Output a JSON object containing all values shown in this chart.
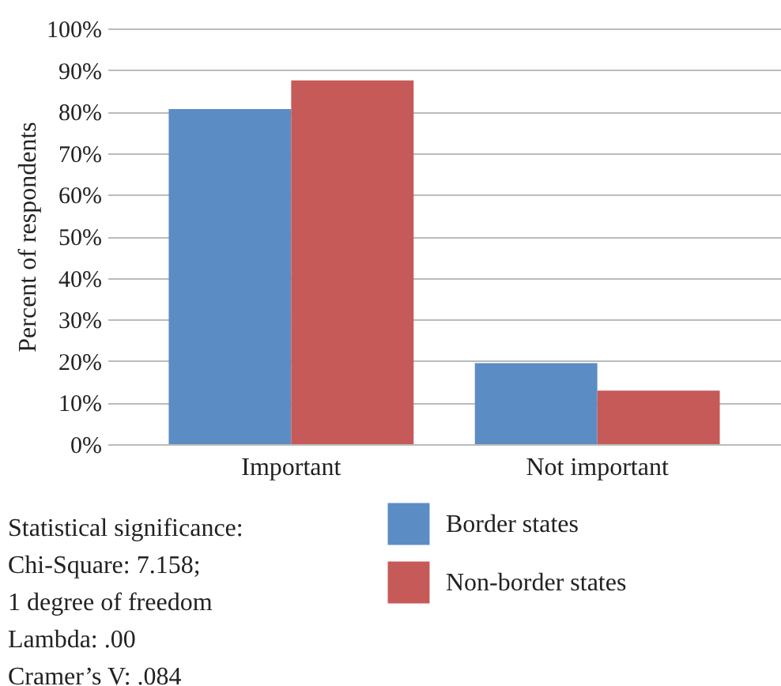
{
  "chart_data": {
    "type": "bar",
    "ylabel": "Percent of respondents",
    "categories": [
      "Important",
      "Not important"
    ],
    "series": [
      {
        "name": "Border states",
        "color": "#5b8cc4",
        "values": [
          80.6,
          19.5
        ]
      },
      {
        "name": "Non-border states",
        "color": "#c55a58",
        "values": [
          87.5,
          12.9
        ]
      }
    ],
    "ylim": [
      0,
      100
    ],
    "yticks": [
      {
        "value": 0,
        "label": "0%"
      },
      {
        "value": 10,
        "label": "10%"
      },
      {
        "value": 20,
        "label": "20%"
      },
      {
        "value": 30,
        "label": "30%"
      },
      {
        "value": 40,
        "label": "40%"
      },
      {
        "value": 50,
        "label": "50%"
      },
      {
        "value": 60,
        "label": "60%"
      },
      {
        "value": 70,
        "label": "70%"
      },
      {
        "value": 80,
        "label": "80%"
      },
      {
        "value": 90,
        "label": "90%"
      },
      {
        "value": 100,
        "label": "100%"
      }
    ],
    "grid": "y",
    "legend": "bottom",
    "annotations": [
      "Statistical significance:",
      "Chi-Square: 7.158;",
      "1 degree of freedom",
      "Lambda: .00",
      "Cramer’s V: .084"
    ]
  }
}
